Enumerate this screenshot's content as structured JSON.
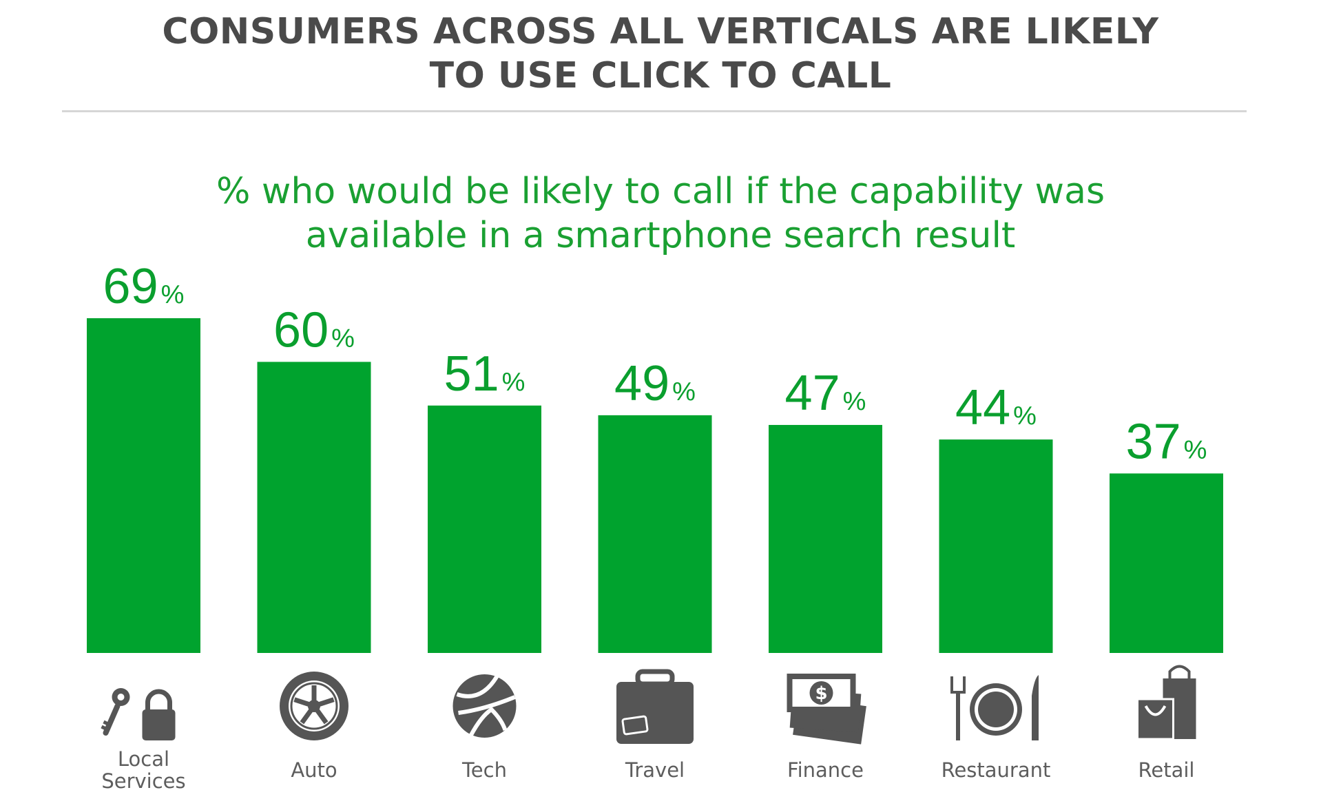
{
  "title_lines": [
    "CONSUMERS ACROSS ALL VERTICALS ARE LIKELY",
    "TO USE CLICK TO CALL"
  ],
  "subtitle_lines": [
    "% who would be likely to call if the capability was",
    "available in a smartphone search result"
  ],
  "colors": {
    "bar": "#00a32e",
    "label": "#0a9f2e",
    "title": "#4a4a4a",
    "icon": "#555555",
    "category": "#5d5d5d"
  },
  "chart_data": {
    "type": "bar",
    "title": "CONSUMERS ACROSS ALL VERTICALS ARE LIKELY TO USE CLICK TO CALL",
    "subtitle": "% who would be likely to call if the capability was available in a smartphone search result",
    "categories": [
      "Local Services",
      "Auto",
      "Tech",
      "Travel",
      "Finance",
      "Restaurant",
      "Retail"
    ],
    "category_lines": [
      [
        "Local",
        "Services"
      ],
      [
        "Auto"
      ],
      [
        "Tech"
      ],
      [
        "Travel"
      ],
      [
        "Finance"
      ],
      [
        "Restaurant"
      ],
      [
        "Retail"
      ]
    ],
    "values": [
      69,
      60,
      51,
      49,
      47,
      44,
      37
    ],
    "value_suffix": "%",
    "icons": [
      "key-lock-icon",
      "tire-icon",
      "globe-icon",
      "suitcase-icon",
      "money-icon",
      "plate-cutlery-icon",
      "shopping-bag-icon"
    ],
    "xlabel": "",
    "ylabel": "",
    "ylim": [
      0,
      69
    ],
    "grid": false,
    "legend": "none"
  }
}
